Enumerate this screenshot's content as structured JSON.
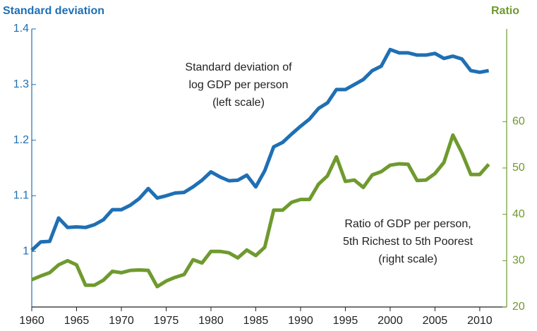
{
  "chart_data": {
    "type": "line",
    "y_axis_label": "Standard deviation",
    "y2_axis_label": "Ratio",
    "annotations": [
      {
        "lines": [
          "Standard deviation of",
          "log GDP per person",
          "(left scale)"
        ]
      },
      {
        "lines": [
          "Ratio of GDP per person,",
          "5th Richest to 5th Poorest",
          "(right scale)"
        ]
      }
    ],
    "x": [
      1960,
      1961,
      1962,
      1963,
      1964,
      1965,
      1966,
      1967,
      1968,
      1969,
      1970,
      1971,
      1972,
      1973,
      1974,
      1975,
      1976,
      1977,
      1978,
      1979,
      1980,
      1981,
      1982,
      1983,
      1984,
      1985,
      1986,
      1987,
      1988,
      1989,
      1990,
      1991,
      1992,
      1993,
      1994,
      1995,
      1996,
      1997,
      1998,
      1999,
      2000,
      2001,
      2002,
      2003,
      2004,
      2005,
      2006,
      2007,
      2008,
      2009,
      2010,
      2011
    ],
    "series": [
      {
        "name": "Standard deviation of log GDP per person",
        "color": "#1f6fb4",
        "axis": "y",
        "values": [
          1.002,
          1.017,
          1.018,
          1.06,
          1.043,
          1.044,
          1.043,
          1.048,
          1.057,
          1.075,
          1.075,
          1.083,
          1.095,
          1.113,
          1.096,
          1.1,
          1.105,
          1.106,
          1.116,
          1.128,
          1.143,
          1.134,
          1.127,
          1.128,
          1.137,
          1.116,
          1.145,
          1.188,
          1.196,
          1.211,
          1.225,
          1.238,
          1.257,
          1.267,
          1.291,
          1.291,
          1.3,
          1.309,
          1.325,
          1.333,
          1.363,
          1.357,
          1.357,
          1.353,
          1.353,
          1.356,
          1.347,
          1.351,
          1.346,
          1.325,
          1.322,
          1.325
        ]
      },
      {
        "name": "Ratio of GDP per person, 5th Richest to 5th Poorest",
        "color": "#6f9a2e",
        "axis": "y2",
        "values": [
          25.9,
          26.7,
          27.4,
          29.1,
          30,
          29.1,
          24.7,
          24.7,
          25.8,
          27.7,
          27.4,
          27.9,
          28,
          27.9,
          24.4,
          25.6,
          26.4,
          27,
          30.2,
          29.5,
          32,
          32,
          31.7,
          30.6,
          32.3,
          31.1,
          32.9,
          40.9,
          40.9,
          42.6,
          43.2,
          43.2,
          46.5,
          48.3,
          52.4,
          47.1,
          47.4,
          45.8,
          48.5,
          49.2,
          50.6,
          50.9,
          50.8,
          47.3,
          47.4,
          48.8,
          51.2,
          57.1,
          53.3,
          48.6,
          48.6,
          50.8
        ]
      }
    ],
    "xlim": [
      1960,
      2013
    ],
    "xticks": [
      1960,
      1965,
      1970,
      1975,
      1980,
      1985,
      1990,
      1995,
      2000,
      2005,
      2010
    ],
    "ylim": [
      0.9,
      1.4
    ],
    "yticks": [
      1,
      1.1,
      1.2,
      1.3,
      1.4
    ],
    "y2lim": [
      20,
      80
    ],
    "y2ticks": [
      20,
      30,
      40,
      50,
      60
    ],
    "grid": false
  }
}
